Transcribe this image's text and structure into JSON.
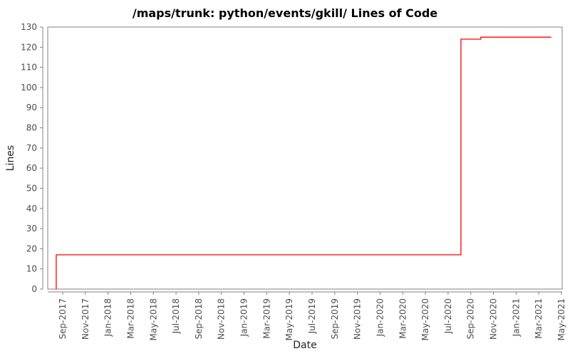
{
  "window": {
    "background": "#ffffff"
  },
  "chart_data": {
    "type": "line",
    "subtype": "step",
    "title": "/maps/trunk: python/events/gkill/ Lines of Code",
    "xlabel": "Date",
    "ylabel": "Lines",
    "legend_position": "none",
    "grid": false,
    "ylim": [
      0,
      130
    ],
    "y_ticks": [
      0,
      10,
      20,
      30,
      40,
      50,
      60,
      70,
      80,
      90,
      100,
      110,
      120,
      130
    ],
    "x_tick_labels": [
      "Sep-2017",
      "Nov-2017",
      "Jan-2018",
      "Mar-2018",
      "May-2018",
      "Jul-2018",
      "Sep-2018",
      "Nov-2018",
      "Jan-2019",
      "Mar-2019",
      "May-2019",
      "Jul-2019",
      "Sep-2019",
      "Nov-2019",
      "Jan-2020",
      "Mar-2020",
      "May-2020",
      "Jul-2020",
      "Sep-2020",
      "Nov-2020",
      "Jan-2021",
      "Mar-2021",
      "May-2021"
    ],
    "x_tick_interval_months": 2,
    "x_axis_start_label": "Sep-2017",
    "x_axis_end_label": "May-2021",
    "series": [
      {
        "name": "Lines of Code",
        "color": "#ff0000",
        "points": [
          [
            "2017-08-14",
            0
          ],
          [
            "2017-08-14",
            17
          ],
          [
            "2020-08-05",
            17
          ],
          [
            "2020-08-05",
            124
          ],
          [
            "2020-09-28",
            124
          ],
          [
            "2020-09-28",
            125
          ],
          [
            "2021-04-04",
            125
          ]
        ]
      }
    ],
    "colors": {
      "line": "#ff0000",
      "frame": "#808080",
      "axis": "#808080",
      "tick_label": "#4d4d4d",
      "axis_label": "#212121",
      "title": "#000000",
      "background": "#ffffff"
    }
  }
}
